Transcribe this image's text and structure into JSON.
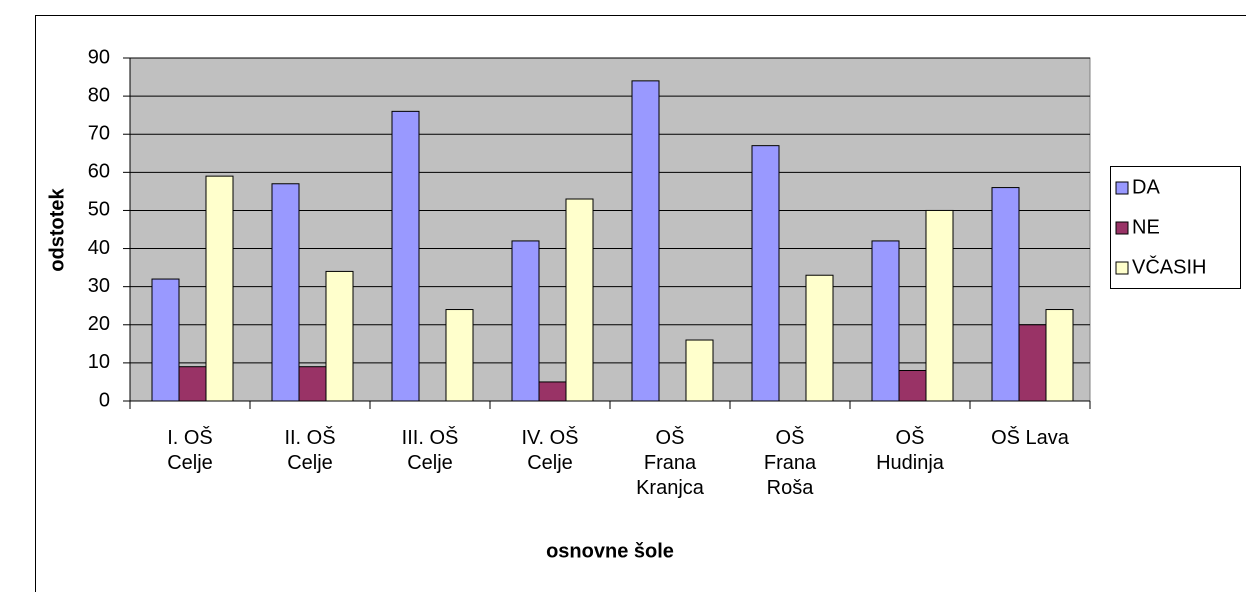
{
  "chart_data": {
    "type": "bar",
    "x_label": "osnovne šole",
    "y_label": "odstotek",
    "categories": [
      "I. OŠ Celje",
      "II. OŠ Celje",
      "III. OŠ Celje",
      "IV. OŠ Celje",
      "OŠ Frana Kranjca",
      "OŠ Frana Roša",
      "OŠ Hudinja",
      "OŠ Lava"
    ],
    "series": [
      {
        "name": "DA",
        "color": "#9999ff",
        "values": [
          32,
          57,
          76,
          42,
          84,
          67,
          42,
          56
        ]
      },
      {
        "name": "NE",
        "color": "#993366",
        "values": [
          9,
          9,
          0,
          5,
          0,
          0,
          8,
          20
        ]
      },
      {
        "name": "VČASIH",
        "color": "#ffffcc",
        "values": [
          59,
          34,
          24,
          53,
          16,
          33,
          50,
          24
        ]
      }
    ],
    "ylim": [
      0,
      90
    ],
    "yticks": [
      0,
      10,
      20,
      30,
      40,
      50,
      60,
      70,
      80,
      90
    ],
    "grid": true,
    "legend": "right"
  }
}
